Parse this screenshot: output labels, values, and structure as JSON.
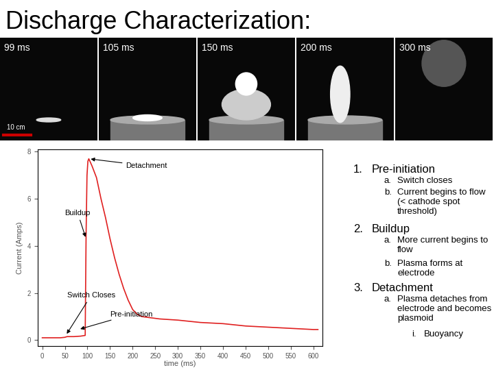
{
  "title": "Discharge Characterization:",
  "images": [
    "99 ms",
    "105 ms",
    "150 ms",
    "200 ms",
    "300 ms"
  ],
  "scale_label": "10 cm",
  "chart_data": {
    "type": "line",
    "x_label": "time (ms)",
    "y_label": "Current (Amps)",
    "x": [
      0,
      20,
      40,
      50,
      55,
      70,
      85,
      95,
      97,
      99,
      101,
      103,
      110,
      120,
      130,
      140,
      150,
      160,
      170,
      180,
      190,
      200,
      210,
      220,
      240,
      260,
      300,
      350,
      400,
      450,
      500,
      550,
      600,
      610
    ],
    "series": [
      {
        "name": "Current",
        "color": "#e02020",
        "values": [
          0.1,
          0.1,
          0.1,
          0.12,
          0.15,
          0.15,
          0.17,
          0.2,
          4.5,
          7.0,
          7.6,
          7.7,
          7.4,
          6.9,
          6.0,
          5.2,
          4.3,
          3.5,
          2.8,
          2.2,
          1.7,
          1.3,
          1.1,
          1.0,
          0.95,
          0.9,
          0.85,
          0.75,
          0.7,
          0.6,
          0.55,
          0.5,
          0.45,
          0.45
        ]
      }
    ],
    "xlim": [
      -10,
      620
    ],
    "xticks": [
      0,
      50,
      100,
      150,
      200,
      250,
      300,
      350,
      400,
      450,
      500,
      550,
      600
    ],
    "ylim": [
      -0.25,
      8.1
    ],
    "yticks": [
      0,
      2,
      4,
      6,
      8
    ],
    "grid": false,
    "annotations": [
      {
        "text": "Detachment",
        "x": 103,
        "y": 7.7,
        "text_x": 185,
        "text_y": 7.4
      },
      {
        "text": "Buildup",
        "x": 97,
        "y": 4.3,
        "text_x": 50,
        "text_y": 5.4
      },
      {
        "text": "Switch Closes",
        "x": 52,
        "y": 0.2,
        "text_x": 55,
        "text_y": 1.9
      },
      {
        "text": "Pre-initiation",
        "x": 80,
        "y": 0.45,
        "text_x": 150,
        "text_y": 1.1
      }
    ]
  },
  "notes": [
    {
      "label": "1.",
      "text": "Pre-initiation",
      "items": [
        {
          "label": "a.",
          "text": "Switch closes"
        },
        {
          "label": "b.",
          "text": "Current begins to flow (< cathode spot threshold)"
        }
      ]
    },
    {
      "label": "2.",
      "text": "Buildup",
      "items": [
        {
          "label": "a.",
          "text": "More current begins to flow"
        },
        {
          "label": "b.",
          "text": "Plasma forms at electrode"
        }
      ]
    },
    {
      "label": "3.",
      "text": "Detachment",
      "items": [
        {
          "label": "a.",
          "text": "Plasma detaches from electrode and becomes plasmoid",
          "items": [
            {
              "label": "i.",
              "text": "Buoyancy"
            }
          ]
        }
      ]
    }
  ]
}
